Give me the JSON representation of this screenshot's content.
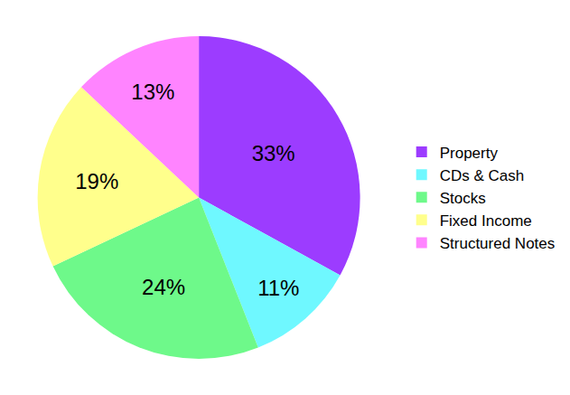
{
  "chart_data": {
    "type": "pie",
    "categories": [
      "Property",
      "CDs & Cash",
      "Stocks",
      "Fixed Income",
      "Structured Notes"
    ],
    "values": [
      33,
      11,
      24,
      19,
      13
    ],
    "value_labels": [
      "33%",
      "11%",
      "24%",
      "19%",
      "13%"
    ],
    "colors": [
      "#9c3cff",
      "#6ff8ff",
      "#6ef98a",
      "#ffff8c",
      "#ff84ff"
    ],
    "data_labels": true,
    "legend": "right"
  }
}
